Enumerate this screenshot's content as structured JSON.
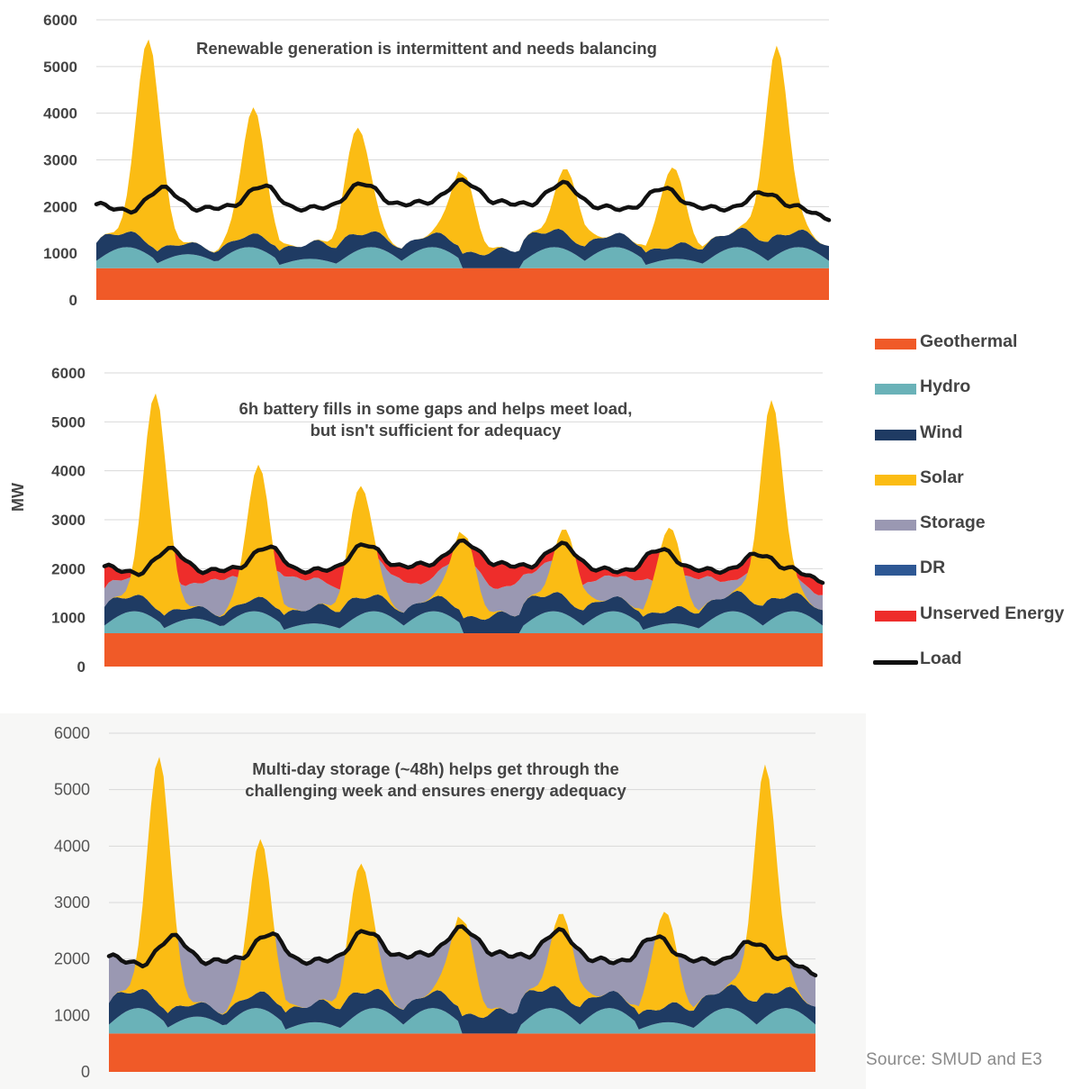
{
  "y_axis_label": "MW",
  "source": "Source: SMUD and E3",
  "legend": [
    {
      "label": "Geothermal",
      "color": "#f05a28",
      "kind": "swatch"
    },
    {
      "label": "Hydro",
      "color": "#6ab2b8",
      "kind": "swatch"
    },
    {
      "label": "Wind",
      "color": "#1f3b63",
      "kind": "swatch"
    },
    {
      "label": "Solar",
      "color": "#fbbc14",
      "kind": "swatch"
    },
    {
      "label": "Storage",
      "color": "#9a98b2",
      "kind": "swatch"
    },
    {
      "label": "DR",
      "color": "#2e5894",
      "kind": "swatch"
    },
    {
      "label": "Unserved Energy",
      "color": "#ee2d2b",
      "kind": "swatch"
    },
    {
      "label": "Load",
      "color": "#111111",
      "kind": "line"
    }
  ],
  "chart_data": [
    {
      "type": "area",
      "title": "Renewable generation is intermittent and needs balancing",
      "ylabel": "MW",
      "ylim": [
        0,
        6000
      ],
      "yticks": [
        0,
        1000,
        2000,
        3000,
        4000,
        5000,
        6000
      ],
      "grid": true,
      "stacking": "stacked",
      "hours": 168,
      "series": [
        {
          "name": "Geothermal",
          "values": [
            680
          ]
        },
        {
          "name": "Hydro",
          "pattern": "pulses",
          "values": [
            450,
            300,
            450,
            200,
            450,
            450,
            0,
            450,
            450,
            200,
            450,
            450
          ]
        },
        {
          "name": "Wind",
          "values": [
            450,
            300,
            250,
            350,
            450,
            300,
            350,
            500,
            350,
            300,
            400,
            450,
            350
          ]
        },
        {
          "name": "Solar",
          "peaks": [
            5400,
            3700,
            3300,
            2700,
            2400,
            2700,
            5050
          ]
        },
        {
          "name": "Load",
          "values": [
            2050,
            1900,
            2400,
            1950,
            2000,
            2450,
            1950,
            2000,
            2500,
            2050,
            2100,
            2550,
            2100,
            2050,
            2500,
            2000,
            1950,
            2400,
            2000,
            1950,
            2300,
            2000,
            1750
          ]
        }
      ]
    },
    {
      "type": "area",
      "title": "6h battery fills in some gaps and helps meet load, but isn't sufficient for adequacy",
      "title_lines": [
        "6h battery fills in some gaps and helps meet load,",
        "but isn't sufficient for adequacy"
      ],
      "ylabel": "MW",
      "ylim": [
        0,
        6000
      ],
      "yticks": [
        0,
        1000,
        2000,
        3000,
        4000,
        5000,
        6000
      ],
      "grid": true,
      "stacking": "stacked",
      "hours": 168,
      "series": [
        {
          "name": "Geothermal",
          "values": [
            680
          ]
        },
        {
          "name": "Hydro",
          "pattern": "pulses",
          "values": [
            450,
            300,
            450,
            200,
            450,
            450,
            0,
            450,
            450,
            200,
            450,
            450
          ]
        },
        {
          "name": "Wind",
          "values": [
            450,
            300,
            250,
            350,
            450,
            300,
            350,
            500,
            350,
            300,
            400,
            450,
            350
          ]
        },
        {
          "name": "Solar",
          "peaks": [
            5400,
            3700,
            3300,
            2700,
            2400,
            2700,
            5050
          ]
        },
        {
          "name": "Storage",
          "fills_to_load": "partial"
        },
        {
          "name": "Unserved Energy",
          "fills_to_load": "remaining gap"
        },
        {
          "name": "Load",
          "values": [
            2050,
            1900,
            2400,
            1950,
            2000,
            2450,
            1950,
            2000,
            2500,
            2050,
            2100,
            2550,
            2100,
            2050,
            2500,
            2000,
            1950,
            2400,
            2000,
            1950,
            2300,
            2000,
            1750
          ]
        }
      ]
    },
    {
      "type": "area",
      "title": "Multi-day storage (~48h) helps get through the challenging week and ensures energy adequacy",
      "title_lines": [
        "Multi-day storage (~48h) helps get through the",
        "challenging week and ensures energy adequacy"
      ],
      "ylabel": "MW",
      "ylim": [
        0,
        6000
      ],
      "yticks": [
        0,
        1000,
        2000,
        3000,
        4000,
        5000,
        6000
      ],
      "grid": true,
      "stacking": "stacked",
      "hours": 168,
      "series": [
        {
          "name": "Geothermal",
          "values": [
            680
          ]
        },
        {
          "name": "Hydro",
          "pattern": "pulses",
          "values": [
            450,
            300,
            450,
            200,
            450,
            450,
            0,
            450,
            450,
            200,
            450,
            450
          ]
        },
        {
          "name": "Wind",
          "values": [
            450,
            300,
            250,
            350,
            450,
            300,
            350,
            500,
            350,
            300,
            400,
            450,
            350
          ]
        },
        {
          "name": "Solar",
          "peaks": [
            5400,
            3700,
            3300,
            2700,
            2400,
            2700,
            5050
          ]
        },
        {
          "name": "Storage",
          "fills_to_load": "full"
        },
        {
          "name": "Load",
          "values": [
            2050,
            1900,
            2400,
            1950,
            2000,
            2450,
            1950,
            2000,
            2500,
            2050,
            2100,
            2550,
            2100,
            2050,
            2500,
            2000,
            1950,
            2400,
            2000,
            1950,
            2300,
            2000,
            1750
          ]
        }
      ]
    }
  ]
}
